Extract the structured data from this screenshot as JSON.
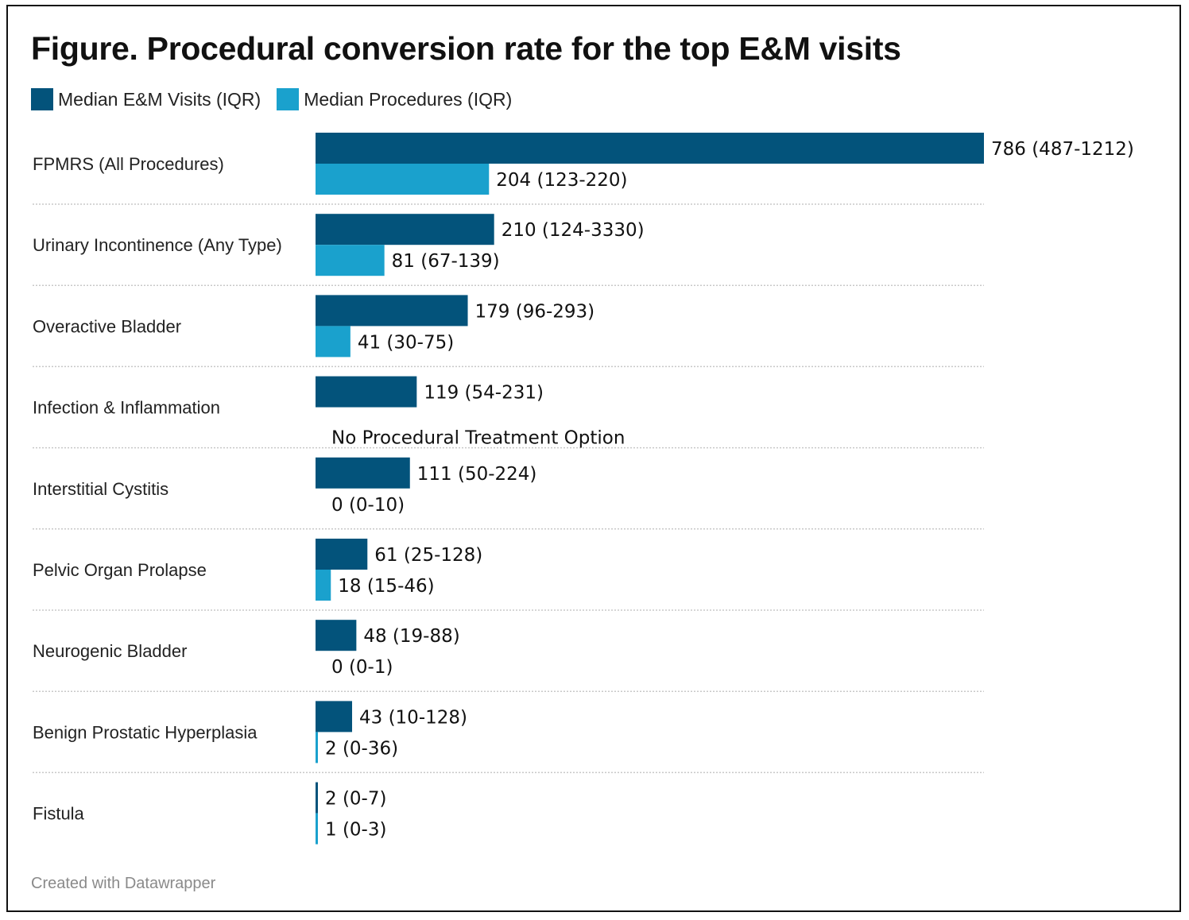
{
  "chart_data": {
    "type": "bar",
    "orientation": "horizontal",
    "title": "Figure. Procedural conversion rate for the top E&M visits",
    "xlabel": "",
    "ylabel": "",
    "xlim": [
      0,
      786
    ],
    "grid": false,
    "legend_position": "top-left",
    "legend": [
      {
        "name": "Median E&M Visits (IQR)",
        "color": "#03537b"
      },
      {
        "name": "Median Procedures (IQR)",
        "color": "#1aa1cd"
      }
    ],
    "categories": [
      "FPMRS (All Procedures)",
      "Urinary Incontinence (Any Type)",
      "Overactive Bladder",
      "Infection & Inflammation",
      "Interstitial Cystitis",
      "Pelvic Organ Prolapse",
      "Neurogenic Bladder",
      "Benign Prostatic Hyperplasia",
      "Fistula"
    ],
    "series": [
      {
        "name": "Median E&M Visits (IQR)",
        "color": "#03537b",
        "values": [
          786,
          210,
          179,
          119,
          111,
          61,
          48,
          43,
          2
        ],
        "labels": [
          "786 (487-1212)",
          "210 (124-3330)",
          "179 (96-293)",
          "119 (54-231)",
          "111 (50-224)",
          "61 (25-128)",
          "48 (19-88)",
          "43 (10-128)",
          "2 (0-7)"
        ]
      },
      {
        "name": "Median Procedures (IQR)",
        "color": "#1aa1cd",
        "values": [
          204,
          81,
          41,
          null,
          0,
          18,
          0,
          2,
          1
        ],
        "labels": [
          "204 (123-220)",
          "81 (67-139)",
          "41 (30-75)",
          "No Procedural Treatment Option",
          "0 (0-10)",
          "18 (15-46)",
          "0 (0-1)",
          "2 (0-36)",
          "1 (0-3)"
        ]
      }
    ]
  },
  "footer": "Created with Datawrapper"
}
